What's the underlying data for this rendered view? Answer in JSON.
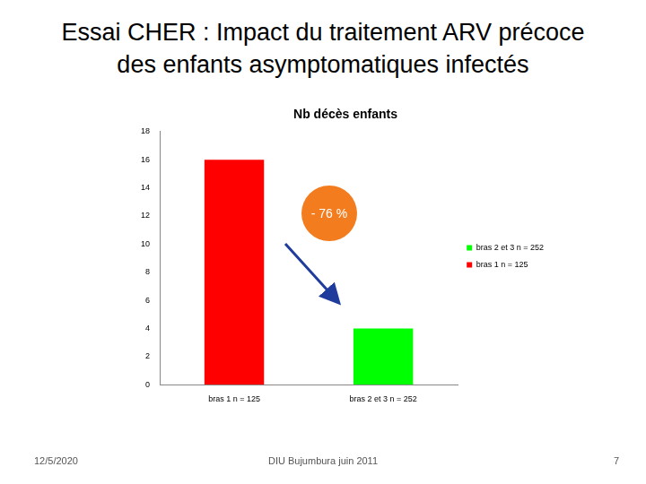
{
  "slide": {
    "title": [
      "Essai CHER : Impact du traitement ARV précoce",
      "des enfants asymptomatiques infectés"
    ],
    "footer": {
      "date": "12/5/2020",
      "event": "DIU Bujumbura juin 2011",
      "page": 7
    }
  },
  "chart_data": {
    "type": "bar",
    "title": "Nb décès enfants",
    "categories": [
      "bras 1 n = 125",
      "bras 2 et 3 n = 252"
    ],
    "values": [
      16,
      4
    ],
    "colors": [
      "#ff0000",
      "#00ff00"
    ],
    "ylim": [
      0,
      18
    ],
    "yticks": [
      0,
      2,
      4,
      6,
      8,
      10,
      12,
      14,
      16,
      18
    ],
    "grid": false,
    "legend": "right",
    "annotations": [
      "- 76 %"
    ]
  }
}
